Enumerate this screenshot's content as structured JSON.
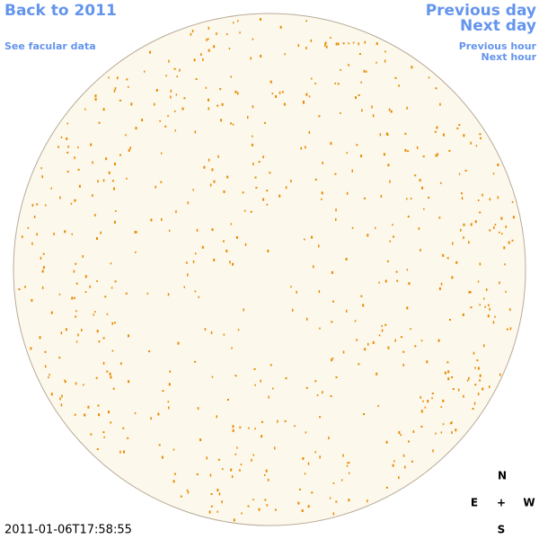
{
  "nav": {
    "back": "Back to 2011",
    "facular": "See facular data",
    "previous_day": "Previous day",
    "next_day": "Next day",
    "previous_hour": "Previous hour",
    "next_hour": "Next hour"
  },
  "timestamp": "2011-01-06T17:58:55",
  "compass": {
    "north": "N",
    "east": "E",
    "center": "+",
    "west": "W",
    "south": "S"
  }
}
